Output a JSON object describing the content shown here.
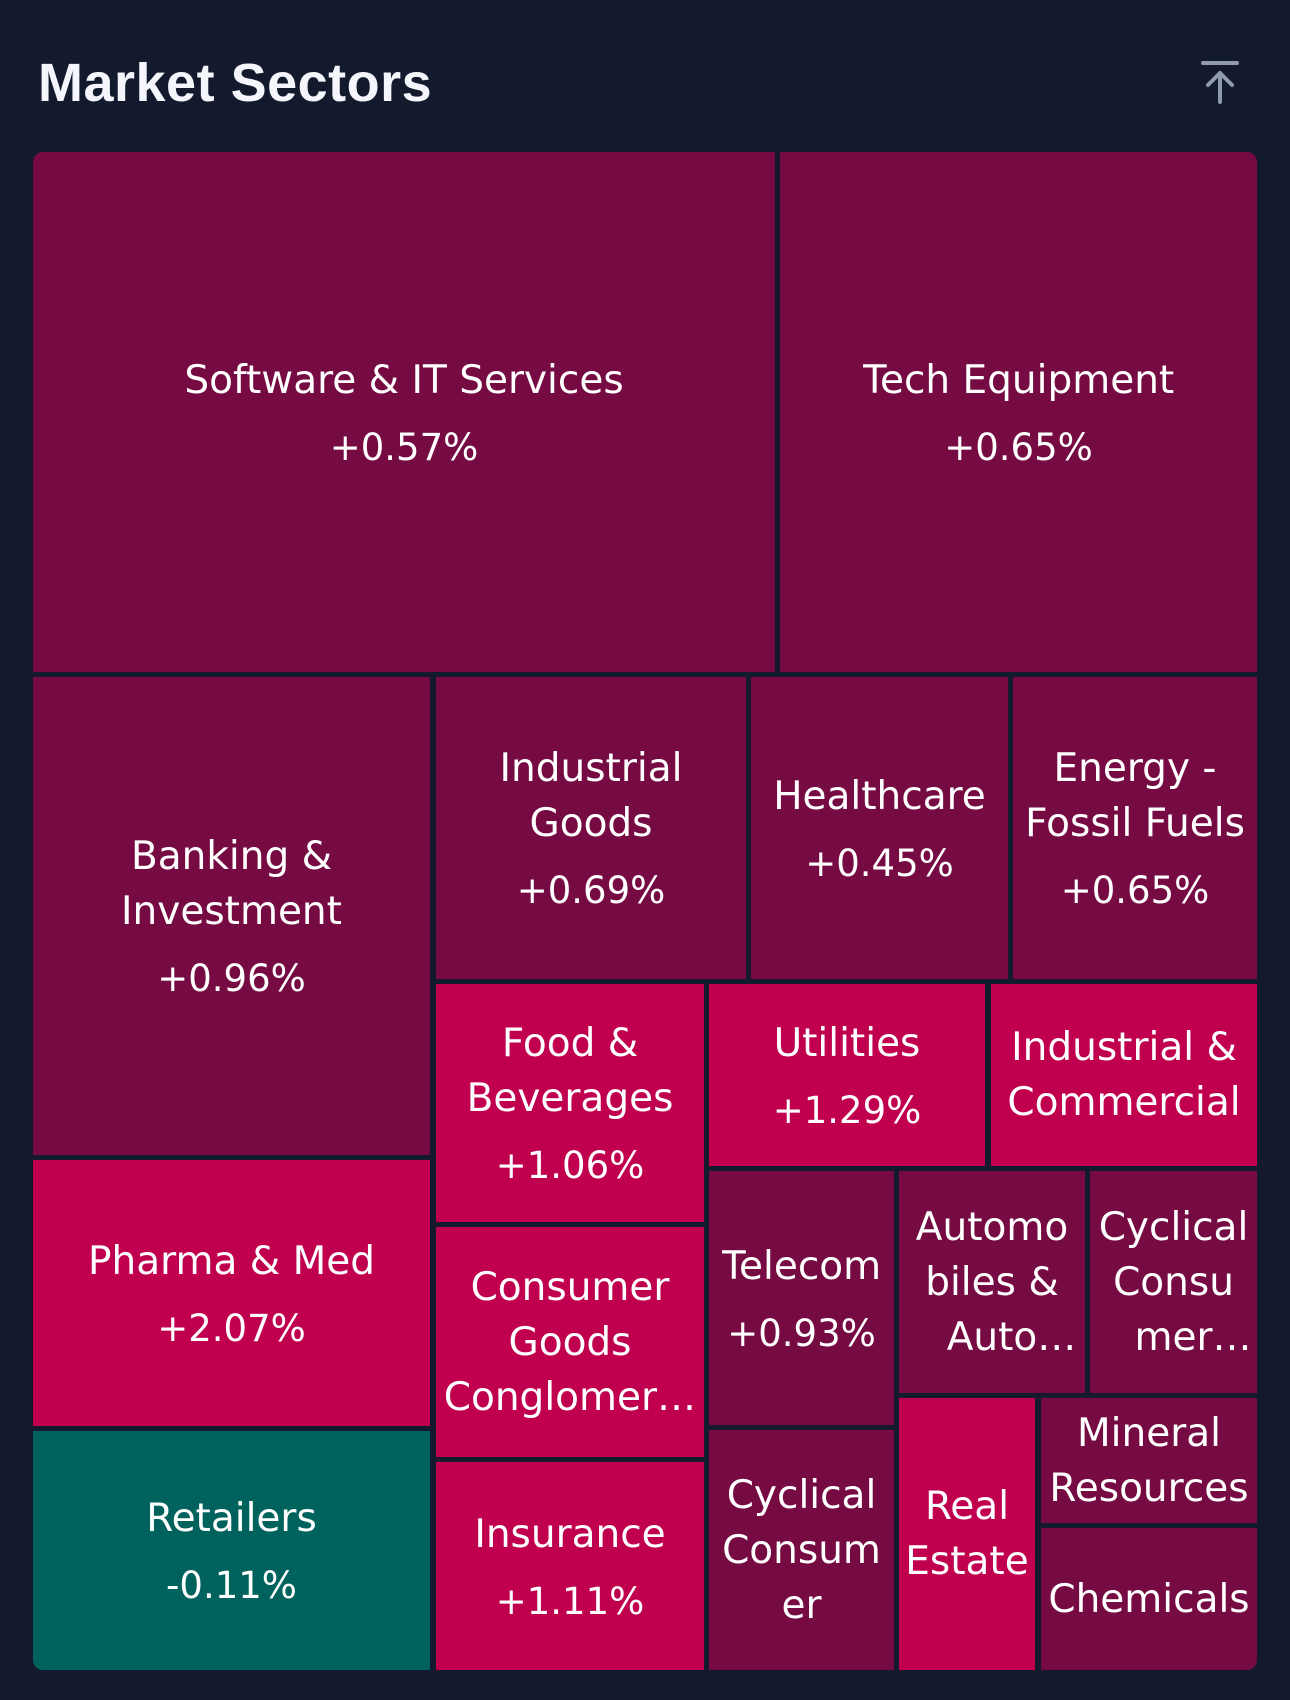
{
  "header": {
    "title": "Market Sectors",
    "collapse_icon": "arrow-up-to-line-icon"
  },
  "colors": {
    "background": "#131a2e",
    "strong_up": "#c0004f",
    "mild_up": "#760b43",
    "down": "#00625c"
  },
  "chart_data": {
    "type": "treemap",
    "title": "Market Sectors",
    "unit": "%",
    "sectors": [
      {
        "name": "Software & IT Services",
        "change": "+0.57%",
        "value": 0.57,
        "color": "#760b43"
      },
      {
        "name": "Tech Equipment",
        "change": "+0.65%",
        "value": 0.65,
        "color": "#760b43"
      },
      {
        "name": "Banking & Investment",
        "change": "+0.96%",
        "value": 0.96,
        "color": "#760b43"
      },
      {
        "name": "Industrial Goods",
        "change": "+0.69%",
        "value": 0.69,
        "color": "#760b43"
      },
      {
        "name": "Healthcare",
        "change": "+0.45%",
        "value": 0.45,
        "color": "#760b43"
      },
      {
        "name": "Energy - Fossil Fuels",
        "change": "+0.65%",
        "value": 0.65,
        "color": "#760b43"
      },
      {
        "name": "Food & Beverages",
        "change": "+1.06%",
        "value": 1.06,
        "color": "#c0004f"
      },
      {
        "name": "Utilities",
        "change": "+1.29%",
        "value": 1.29,
        "color": "#c0004f"
      },
      {
        "name": "Industrial & Commercial",
        "change": "",
        "value": null,
        "color": "#c0004f"
      },
      {
        "name": "Pharma & Med",
        "change": "+2.07%",
        "value": 2.07,
        "color": "#c0004f"
      },
      {
        "name": "Consumer Goods Conglomerates",
        "change": "",
        "value": null,
        "color": "#c0004f"
      },
      {
        "name": "Telecom",
        "change": "+0.93%",
        "value": 0.93,
        "color": "#760b43"
      },
      {
        "name": "Automobiles & Auto Parts",
        "change": "",
        "value": null,
        "color": "#760b43"
      },
      {
        "name": "Cyclical Consumer Products",
        "change": "",
        "value": null,
        "color": "#760b43"
      },
      {
        "name": "Retailers",
        "change": "-0.11%",
        "value": -0.11,
        "color": "#00625c"
      },
      {
        "name": "Insurance",
        "change": "+1.11%",
        "value": 1.11,
        "color": "#c0004f"
      },
      {
        "name": "Cyclical Consumer",
        "change": "",
        "value": null,
        "color": "#760b43"
      },
      {
        "name": "Real Estate",
        "change": "",
        "value": null,
        "color": "#c0004f"
      },
      {
        "name": "Mineral Resources",
        "change": "",
        "value": null,
        "color": "#760b43"
      },
      {
        "name": "Chemicals",
        "change": "",
        "value": null,
        "color": "#760b43"
      }
    ]
  }
}
